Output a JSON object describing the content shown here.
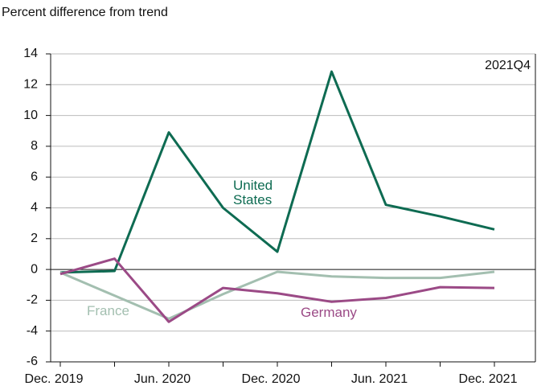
{
  "chart_data": {
    "type": "line",
    "title": "Percent difference from trend",
    "annotation": "2021Q4",
    "categories": [
      "Dec. 2019",
      null,
      "Jun. 2020",
      null,
      "Dec. 2020",
      null,
      "Jun. 2021",
      null,
      "Dec. 2021"
    ],
    "series": [
      {
        "name": "United States",
        "color": "#0e6b52",
        "values": [
          -0.2,
          -0.1,
          8.9,
          4.0,
          1.15,
          12.85,
          4.2,
          3.45,
          2.6
        ]
      },
      {
        "name": "France",
        "color": "#a3bfb0",
        "values": [
          -0.2,
          -1.7,
          -3.2,
          -1.6,
          -0.15,
          -0.45,
          -0.55,
          -0.55,
          -0.15
        ]
      },
      {
        "name": "Germany",
        "color": "#9b4a86",
        "values": [
          -0.3,
          0.7,
          -3.4,
          -1.2,
          -1.55,
          -2.1,
          -1.85,
          -1.15,
          -1.2
        ]
      }
    ],
    "ylim": [
      -6,
      14
    ],
    "yticks": [
      -6,
      -4,
      -2,
      0,
      2,
      4,
      6,
      8,
      10,
      12,
      14
    ],
    "grid": true
  }
}
